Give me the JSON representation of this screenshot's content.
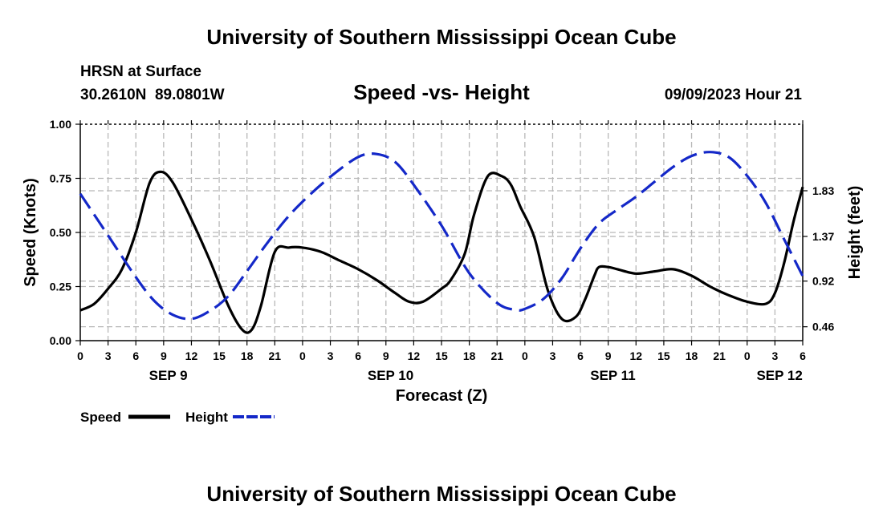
{
  "header": {
    "title_top": "University of Southern Mississippi Ocean Cube",
    "station": "HRSN at Surface",
    "coords": "30.2610N  89.0801W",
    "subtitle": "Speed -vs- Height",
    "datetime": "09/09/2023 Hour 21",
    "title_bottom": "University of Southern Mississippi Ocean Cube"
  },
  "legend": {
    "speed_label": "Speed",
    "height_label": "Height"
  },
  "colors": {
    "speed": "#000000",
    "height": "#1428c8",
    "grid": "#b8b8b8"
  },
  "chart_data": {
    "type": "line",
    "title": "Speed -vs- Height",
    "xlabel": "Forecast (Z)",
    "ylabel": "Speed (Knots)",
    "y2label": "Height (feet)",
    "x_unit": "hours since Sep 9 00Z",
    "xlim": [
      0,
      78
    ],
    "x_ticks": [
      0,
      3,
      6,
      9,
      12,
      15,
      18,
      21,
      24,
      27,
      30,
      33,
      36,
      39,
      42,
      45,
      48,
      51,
      54,
      57,
      60,
      63,
      66,
      69,
      72,
      75,
      78
    ],
    "x_tick_labels": [
      "0",
      "3",
      "6",
      "9",
      "12",
      "15",
      "18",
      "21",
      "0",
      "3",
      "6",
      "9",
      "12",
      "15",
      "18",
      "21",
      "0",
      "3",
      "6",
      "9",
      "12",
      "15",
      "18",
      "21",
      "0",
      "3",
      "6"
    ],
    "date_labels": [
      {
        "x": 9.5,
        "label": "SEP 9"
      },
      {
        "x": 33.5,
        "label": "SEP 10"
      },
      {
        "x": 57.5,
        "label": "SEP 11"
      },
      {
        "x": 75.5,
        "label": "SEP 12"
      }
    ],
    "ylim": [
      0,
      1
    ],
    "y_ticks": [
      0,
      0.25,
      0.5,
      0.75,
      1
    ],
    "y_tick_labels": [
      "0.00",
      "0.25",
      "0.50",
      "0.75",
      "1.00"
    ],
    "y2lim": [
      0.32,
      2.5
    ],
    "y2_ticks": [
      0.46,
      0.92,
      1.37,
      1.83
    ],
    "y2_tick_labels": [
      "0.46",
      "0.92",
      "1.37",
      "1.83"
    ],
    "series": [
      {
        "name": "Speed",
        "axis": "left",
        "style": "solid",
        "x": [
          0,
          1.5,
          3,
          4.5,
          6,
          7.5,
          8.7,
          10,
          12,
          14,
          16,
          17.5,
          18.5,
          19.5,
          21,
          22.5,
          24,
          26,
          28,
          30,
          32,
          34,
          35.5,
          37,
          39,
          40,
          41.5,
          42.5,
          44,
          45.5,
          46.5,
          47.5,
          49,
          50.5,
          52,
          53.5,
          54.5,
          55.5,
          56,
          57,
          58,
          60,
          62,
          64,
          66,
          68,
          70,
          72,
          74,
          75,
          76,
          77,
          78
        ],
        "values": [
          0.14,
          0.17,
          0.24,
          0.33,
          0.5,
          0.73,
          0.78,
          0.73,
          0.56,
          0.37,
          0.16,
          0.05,
          0.05,
          0.16,
          0.41,
          0.43,
          0.43,
          0.41,
          0.37,
          0.33,
          0.28,
          0.22,
          0.18,
          0.18,
          0.24,
          0.28,
          0.4,
          0.58,
          0.76,
          0.76,
          0.72,
          0.62,
          0.48,
          0.23,
          0.1,
          0.11,
          0.19,
          0.3,
          0.34,
          0.34,
          0.33,
          0.31,
          0.32,
          0.33,
          0.3,
          0.25,
          0.21,
          0.18,
          0.17,
          0.22,
          0.36,
          0.55,
          0.71
        ]
      },
      {
        "name": "Height",
        "axis": "right",
        "style": "dashed",
        "x": [
          0,
          3,
          6,
          8,
          10,
          12,
          14,
          16,
          18,
          20,
          22,
          24,
          27,
          30,
          32,
          34,
          36,
          39,
          42,
          45,
          47,
          48,
          50,
          52,
          54,
          56,
          58,
          60,
          62,
          64,
          66,
          68,
          70,
          72,
          74,
          76,
          78
        ],
        "values": [
          1.8,
          1.38,
          0.96,
          0.72,
          0.58,
          0.54,
          0.62,
          0.77,
          1.02,
          1.28,
          1.52,
          1.72,
          1.97,
          2.17,
          2.2,
          2.12,
          1.89,
          1.48,
          1.0,
          0.7,
          0.63,
          0.64,
          0.74,
          0.95,
          1.25,
          1.5,
          1.64,
          1.77,
          1.92,
          2.07,
          2.18,
          2.22,
          2.17,
          1.98,
          1.71,
          1.34,
          0.97
        ]
      }
    ]
  }
}
